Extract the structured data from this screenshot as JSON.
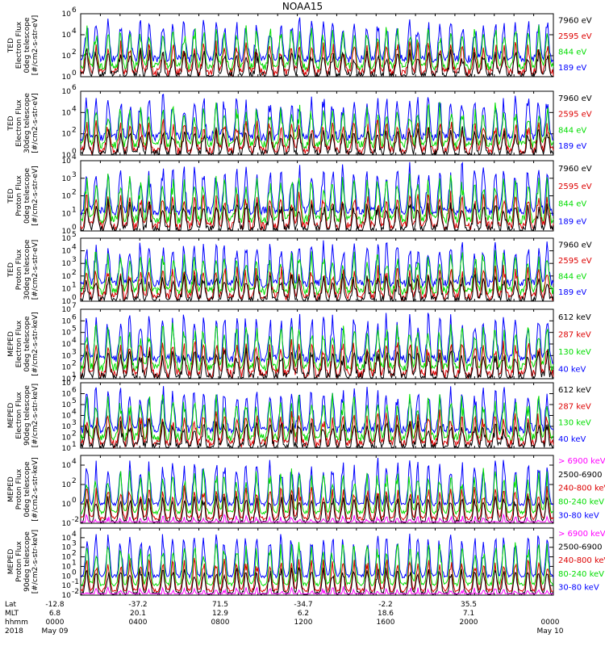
{
  "title": "NOAA15",
  "colors": {
    "black": "#000000",
    "red": "#dd0000",
    "green": "#00dd00",
    "blue": "#0000ff",
    "magenta": "#ff00ff"
  },
  "chart_data": [
    {
      "type": "line",
      "ylabel": [
        "TED",
        "Electron Flux",
        "0deg telescope",
        "[#/cm2-s-str-eV]"
      ],
      "yscale": "log",
      "ylim_exp": [
        0,
        6
      ],
      "ticks": [
        {
          "base": "10",
          "exp": "0"
        },
        {
          "base": "10",
          "exp": "2"
        },
        {
          "base": "10",
          "exp": "4"
        },
        {
          "base": "10",
          "exp": "6"
        }
      ],
      "series": [
        {
          "name": "7960 eV",
          "color": "black"
        },
        {
          "name": "2595 eV",
          "color": "red"
        },
        {
          "name": "844 eV",
          "color": "green"
        },
        {
          "name": "189 eV",
          "color": "blue"
        }
      ]
    },
    {
      "type": "line",
      "ylabel": [
        "TED",
        "Electron Flux",
        "30deg telescope",
        "[#/cm2-s-str-eV]"
      ],
      "yscale": "log",
      "ylim_exp": [
        0,
        6
      ],
      "ticks": [
        {
          "base": "10",
          "exp": "0"
        },
        {
          "base": "10",
          "exp": "2"
        },
        {
          "base": "10",
          "exp": "4"
        },
        {
          "base": "10",
          "exp": "6"
        }
      ],
      "series": [
        {
          "name": "7960 eV",
          "color": "black"
        },
        {
          "name": "2595 eV",
          "color": "red"
        },
        {
          "name": "844 eV",
          "color": "green"
        },
        {
          "name": "189 eV",
          "color": "blue"
        }
      ]
    },
    {
      "type": "line",
      "ylabel": [
        "TED",
        "Proton Flux",
        "0deg telescope",
        "[#/cm2-s-str-eV]"
      ],
      "yscale": "log",
      "ylim_exp": [
        0,
        4
      ],
      "ticks": [
        {
          "base": "10",
          "exp": "0"
        },
        {
          "base": "10",
          "exp": "1"
        },
        {
          "base": "10",
          "exp": "2"
        },
        {
          "base": "10",
          "exp": "3"
        },
        {
          "base": "10",
          "exp": "4"
        }
      ],
      "series": [
        {
          "name": "7960 eV",
          "color": "black"
        },
        {
          "name": "2595 eV",
          "color": "red"
        },
        {
          "name": "844 eV",
          "color": "green"
        },
        {
          "name": "189 eV",
          "color": "blue"
        }
      ]
    },
    {
      "type": "line",
      "ylabel": [
        "TED",
        "Proton Flux",
        "30deg telescope",
        "[#/cm2-s-str-eV]"
      ],
      "yscale": "log",
      "ylim_exp": [
        0,
        5
      ],
      "ticks": [
        {
          "base": "10",
          "exp": "0"
        },
        {
          "base": "10",
          "exp": "1"
        },
        {
          "base": "10",
          "exp": "2"
        },
        {
          "base": "10",
          "exp": "3"
        },
        {
          "base": "10",
          "exp": "4"
        },
        {
          "base": "10",
          "exp": "5"
        }
      ],
      "series": [
        {
          "name": "7960 eV",
          "color": "black"
        },
        {
          "name": "2595 eV",
          "color": "red"
        },
        {
          "name": "844 eV",
          "color": "green"
        },
        {
          "name": "189 eV",
          "color": "blue"
        }
      ]
    },
    {
      "type": "line",
      "ylabel": [
        "MEPED",
        "Electron Flux",
        "0deg telescope",
        "[#/cm2-s-str-keV]"
      ],
      "yscale": "log",
      "ylim_exp": [
        1,
        7
      ],
      "ticks": [
        {
          "base": "10",
          "exp": "1"
        },
        {
          "base": "10",
          "exp": "2"
        },
        {
          "base": "10",
          "exp": "3"
        },
        {
          "base": "10",
          "exp": "4"
        },
        {
          "base": "10",
          "exp": "5"
        },
        {
          "base": "10",
          "exp": "6"
        },
        {
          "base": "10",
          "exp": "7"
        }
      ],
      "series": [
        {
          "name": "612 keV",
          "color": "black"
        },
        {
          "name": "287 keV",
          "color": "red"
        },
        {
          "name": "130 keV",
          "color": "green"
        },
        {
          "name": "40 keV",
          "color": "blue"
        }
      ]
    },
    {
      "type": "line",
      "ylabel": [
        "MEPED",
        "Electron Flux",
        "90deg telescope",
        "[#/cm2-s-str-keV]"
      ],
      "yscale": "log",
      "ylim_exp": [
        1,
        7
      ],
      "ticks": [
        {
          "base": "10",
          "exp": "1"
        },
        {
          "base": "10",
          "exp": "2"
        },
        {
          "base": "10",
          "exp": "3"
        },
        {
          "base": "10",
          "exp": "4"
        },
        {
          "base": "10",
          "exp": "5"
        },
        {
          "base": "10",
          "exp": "6"
        },
        {
          "base": "10",
          "exp": "7"
        }
      ],
      "series": [
        {
          "name": "612 keV",
          "color": "black"
        },
        {
          "name": "287 keV",
          "color": "red"
        },
        {
          "name": "130 keV",
          "color": "green"
        },
        {
          "name": "40 keV",
          "color": "blue"
        }
      ]
    },
    {
      "type": "line",
      "ylabel": [
        "MEPED",
        "Proton Flux",
        "0deg telescope",
        "[#/cm2-s-str-keV]"
      ],
      "yscale": "log",
      "ylim_exp": [
        -2,
        5
      ],
      "ticks": [
        {
          "base": "10",
          "exp": "-2"
        },
        {
          "base": "10",
          "exp": "0"
        },
        {
          "base": "10",
          "exp": "2"
        },
        {
          "base": "10",
          "exp": "4"
        }
      ],
      "series": [
        {
          "name": "> 6900 keV",
          "color": "magenta"
        },
        {
          "name": "2500-6900",
          "color": "black"
        },
        {
          "name": "240-800 keV",
          "color": "red"
        },
        {
          "name": "80-240 keV",
          "color": "green"
        },
        {
          "name": "30-80 keV",
          "color": "blue"
        }
      ]
    },
    {
      "type": "line",
      "ylabel": [
        "MEPED",
        "Proton Flux",
        "90deg telescope",
        "[#/cm2-s-str-keV]"
      ],
      "yscale": "log",
      "ylim_exp": [
        -2,
        5
      ],
      "ticks": [
        {
          "base": "10",
          "exp": "-2"
        },
        {
          "base": "10",
          "exp": "-1"
        },
        {
          "base": "10",
          "exp": "0"
        },
        {
          "base": "10",
          "exp": "1"
        },
        {
          "base": "10",
          "exp": "2"
        },
        {
          "base": "10",
          "exp": "3"
        },
        {
          "base": "10",
          "exp": "4"
        }
      ],
      "series": [
        {
          "name": "> 6900 keV",
          "color": "magenta"
        },
        {
          "name": "2500-6900",
          "color": "black"
        },
        {
          "name": "240-800 keV",
          "color": "red"
        },
        {
          "name": "80-240 keV",
          "color": "green"
        },
        {
          "name": "30-80 keV",
          "color": "blue"
        }
      ]
    }
  ],
  "x_axis": {
    "row_labels": [
      "Lat",
      "MLT",
      "hhmm",
      "2018"
    ],
    "columns": [
      {
        "lat": "-12.8",
        "mlt": "6.8",
        "hhmm": "0000",
        "date": "May 09"
      },
      {
        "lat": "-37.2",
        "mlt": "20.1",
        "hhmm": "0400",
        "date": ""
      },
      {
        "lat": "71.5",
        "mlt": "12.9",
        "hhmm": "0800",
        "date": ""
      },
      {
        "lat": "-34.7",
        "mlt": "6.2",
        "hhmm": "1200",
        "date": ""
      },
      {
        "lat": "-2.2",
        "mlt": "18.6",
        "hhmm": "1600",
        "date": ""
      },
      {
        "lat": "35.5",
        "mlt": "7.1",
        "hhmm": "2000",
        "date": ""
      },
      {
        "lat": "",
        "mlt": "",
        "hhmm": "0000",
        "date": "May 10"
      }
    ]
  }
}
